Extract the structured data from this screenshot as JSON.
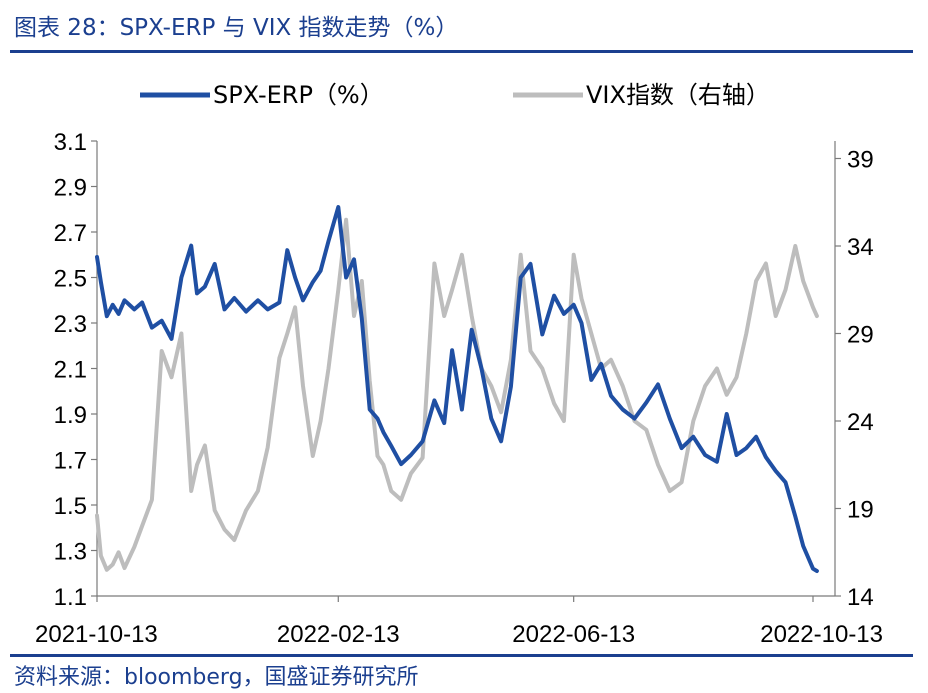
{
  "header": {
    "title": "图表 28：SPX-ERP 与 VIX 指数走势（%）"
  },
  "footer": {
    "source": "资料来源：bloomberg，国盛证券研究所"
  },
  "colors": {
    "accent": "#1b3f8f",
    "spx": "#1f4fa3",
    "vix": "#bdbdbd"
  },
  "chart_data": {
    "type": "line",
    "title": "SPX-ERP 与 VIX 指数走势（%）",
    "legend_position": "top",
    "grid": false,
    "x_ticks": [
      "2021-10-13",
      "2022-02-13",
      "2022-06-13",
      "2022-10-13"
    ],
    "y_left": {
      "ylim": [
        1.1,
        3.1
      ],
      "ticks": [
        "3.1",
        "2.9",
        "2.7",
        "2.5",
        "2.3",
        "2.1",
        "1.9",
        "1.7",
        "1.5",
        "1.3",
        "1.1"
      ]
    },
    "y_right": {
      "ylim": [
        14,
        40
      ],
      "ticks": [
        "39",
        "34",
        "29",
        "24",
        "19",
        "14"
      ]
    },
    "series": [
      {
        "name": "SPX-ERP（%）",
        "axis": "left",
        "x": [
          "2021-10-13",
          "2021-10-15",
          "2021-10-18",
          "2021-10-21",
          "2021-10-24",
          "2021-10-27",
          "2021-11-01",
          "2021-11-05",
          "2021-11-10",
          "2021-11-15",
          "2021-11-20",
          "2021-11-25",
          "2021-11-30",
          "2021-12-03",
          "2021-12-07",
          "2021-12-12",
          "2021-12-17",
          "2021-12-22",
          "2021-12-28",
          "2022-01-03",
          "2022-01-08",
          "2022-01-14",
          "2022-01-18",
          "2022-01-22",
          "2022-01-26",
          "2022-01-31",
          "2022-02-04",
          "2022-02-08",
          "2022-02-13",
          "2022-02-17",
          "2022-02-21",
          "2022-02-25",
          "2022-03-01",
          "2022-03-05",
          "2022-03-08",
          "2022-03-12",
          "2022-03-17",
          "2022-03-22",
          "2022-03-28",
          "2022-04-03",
          "2022-04-08",
          "2022-04-12",
          "2022-04-17",
          "2022-04-22",
          "2022-04-27",
          "2022-05-02",
          "2022-05-07",
          "2022-05-12",
          "2022-05-17",
          "2022-05-22",
          "2022-05-28",
          "2022-06-03",
          "2022-06-08",
          "2022-06-13",
          "2022-06-17",
          "2022-06-22",
          "2022-06-27",
          "2022-07-02",
          "2022-07-08",
          "2022-07-14",
          "2022-07-20",
          "2022-07-26",
          "2022-08-01",
          "2022-08-07",
          "2022-08-13",
          "2022-08-19",
          "2022-08-25",
          "2022-08-30",
          "2022-09-04",
          "2022-09-09",
          "2022-09-14",
          "2022-09-19",
          "2022-09-24",
          "2022-09-29",
          "2022-10-04",
          "2022-10-08",
          "2022-10-13",
          "2022-10-15"
        ],
        "values": [
          2.59,
          2.48,
          2.33,
          2.38,
          2.34,
          2.4,
          2.36,
          2.39,
          2.28,
          2.31,
          2.23,
          2.5,
          2.64,
          2.43,
          2.46,
          2.56,
          2.36,
          2.41,
          2.35,
          2.4,
          2.36,
          2.39,
          2.62,
          2.5,
          2.4,
          2.48,
          2.53,
          2.66,
          2.81,
          2.5,
          2.58,
          2.32,
          1.92,
          1.88,
          1.82,
          1.76,
          1.68,
          1.72,
          1.78,
          1.96,
          1.86,
          2.18,
          1.92,
          2.27,
          2.1,
          1.88,
          1.78,
          2.02,
          2.5,
          2.56,
          2.25,
          2.42,
          2.34,
          2.38,
          2.3,
          2.05,
          2.12,
          1.98,
          1.92,
          1.88,
          1.95,
          2.03,
          1.88,
          1.75,
          1.8,
          1.72,
          1.69,
          1.9,
          1.72,
          1.75,
          1.8,
          1.71,
          1.65,
          1.6,
          1.45,
          1.32,
          1.22,
          1.21
        ]
      },
      {
        "name": "VIX指数（右轴）",
        "axis": "right",
        "x": [
          "2021-10-13",
          "2021-10-15",
          "2021-10-18",
          "2021-10-21",
          "2021-10-24",
          "2021-10-27",
          "2021-11-01",
          "2021-11-05",
          "2021-11-10",
          "2021-11-15",
          "2021-11-20",
          "2021-11-25",
          "2021-11-30",
          "2021-12-03",
          "2021-12-07",
          "2021-12-12",
          "2021-12-17",
          "2021-12-22",
          "2021-12-28",
          "2022-01-03",
          "2022-01-08",
          "2022-01-14",
          "2022-01-18",
          "2022-01-22",
          "2022-01-26",
          "2022-01-31",
          "2022-02-04",
          "2022-02-08",
          "2022-02-13",
          "2022-02-17",
          "2022-02-21",
          "2022-02-25",
          "2022-03-01",
          "2022-03-05",
          "2022-03-08",
          "2022-03-12",
          "2022-03-17",
          "2022-03-22",
          "2022-03-28",
          "2022-04-03",
          "2022-04-08",
          "2022-04-12",
          "2022-04-17",
          "2022-04-22",
          "2022-04-27",
          "2022-05-02",
          "2022-05-07",
          "2022-05-12",
          "2022-05-17",
          "2022-05-22",
          "2022-05-28",
          "2022-06-03",
          "2022-06-08",
          "2022-06-13",
          "2022-06-17",
          "2022-06-22",
          "2022-06-27",
          "2022-07-02",
          "2022-07-08",
          "2022-07-14",
          "2022-07-20",
          "2022-07-26",
          "2022-08-01",
          "2022-08-07",
          "2022-08-13",
          "2022-08-19",
          "2022-08-25",
          "2022-08-30",
          "2022-09-04",
          "2022-09-09",
          "2022-09-14",
          "2022-09-19",
          "2022-09-24",
          "2022-09-29",
          "2022-10-04",
          "2022-10-08",
          "2022-10-13",
          "2022-10-15"
        ],
        "values": [
          18.6,
          16.3,
          15.5,
          15.8,
          16.5,
          15.6,
          16.8,
          18.0,
          19.5,
          28.0,
          26.5,
          29.0,
          20.0,
          21.5,
          22.6,
          18.9,
          17.8,
          17.2,
          18.9,
          20.0,
          22.5,
          27.6,
          29.0,
          30.5,
          26.0,
          22.0,
          24.0,
          27.0,
          31.5,
          35.5,
          30.0,
          32.0,
          26.3,
          22.0,
          21.5,
          20.0,
          19.5,
          21.0,
          21.9,
          33.0,
          30.0,
          31.5,
          33.5,
          30.0,
          27.0,
          26.0,
          24.5,
          27.5,
          33.5,
          28.0,
          27.0,
          25.0,
          24.0,
          33.5,
          31.0,
          29.0,
          27.0,
          27.5,
          26.0,
          24.0,
          23.5,
          21.5,
          20.0,
          20.5,
          24.0,
          26.0,
          27.0,
          25.5,
          26.5,
          29.0,
          32.0,
          33.0,
          30.0,
          31.5,
          34.0,
          32.0,
          30.5,
          30.0
        ]
      }
    ]
  }
}
